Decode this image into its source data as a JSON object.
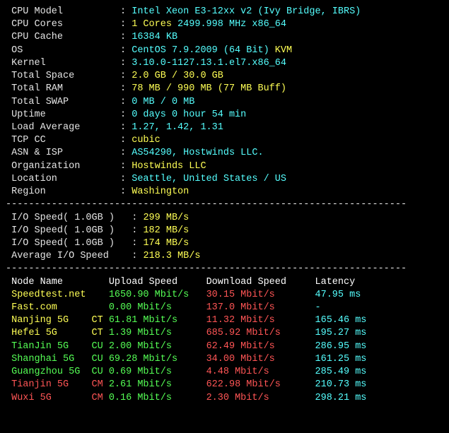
{
  "sysinfo": [
    {
      "label": "CPU Model",
      "segments": [
        {
          "c": "cyan",
          "t": "Intel Xeon E3-12xx v2 (Ivy Bridge, IBRS)"
        }
      ]
    },
    {
      "label": "CPU Cores",
      "segments": [
        {
          "c": "yellow",
          "t": "1 Cores"
        },
        {
          "c": "cyan",
          "t": " 2499.998 MHz x86_64"
        }
      ]
    },
    {
      "label": "CPU Cache",
      "segments": [
        {
          "c": "cyan",
          "t": "16384 KB"
        }
      ]
    },
    {
      "label": "OS",
      "segments": [
        {
          "c": "cyan",
          "t": "CentOS 7.9.2009 (64 Bit) "
        },
        {
          "c": "yellow",
          "t": "KVM"
        }
      ]
    },
    {
      "label": "Kernel",
      "segments": [
        {
          "c": "cyan",
          "t": "3.10.0-1127.13.1.el7.x86_64"
        }
      ]
    },
    {
      "label": "Total Space",
      "segments": [
        {
          "c": "yellow",
          "t": "2.0 GB / 30.0 GB"
        }
      ]
    },
    {
      "label": "Total RAM",
      "segments": [
        {
          "c": "yellow",
          "t": "78 MB / 990 MB (77 MB Buff)"
        }
      ]
    },
    {
      "label": "Total SWAP",
      "segments": [
        {
          "c": "cyan",
          "t": "0 MB / 0 MB"
        }
      ]
    },
    {
      "label": "Uptime",
      "segments": [
        {
          "c": "cyan",
          "t": "0 days 0 hour 54 min"
        }
      ]
    },
    {
      "label": "Load Average",
      "segments": [
        {
          "c": "cyan",
          "t": "1.27, 1.42, 1.31"
        }
      ]
    },
    {
      "label": "TCP CC",
      "segments": [
        {
          "c": "yellow",
          "t": "cubic"
        }
      ]
    },
    {
      "label": "ASN & ISP",
      "segments": [
        {
          "c": "cyan",
          "t": "AS54290, Hostwinds LLC."
        }
      ]
    },
    {
      "label": "Organization",
      "segments": [
        {
          "c": "yellow",
          "t": "Hostwinds LLC"
        }
      ]
    },
    {
      "label": "Location",
      "segments": [
        {
          "c": "cyan",
          "t": "Seattle, United States / US"
        }
      ]
    },
    {
      "label": "Region",
      "segments": [
        {
          "c": "yellow",
          "t": "Washington"
        }
      ]
    }
  ],
  "io": [
    {
      "label": "I/O Speed( 1.0GB )",
      "value": "299 MB/s"
    },
    {
      "label": "I/O Speed( 1.0GB )",
      "value": "182 MB/s"
    },
    {
      "label": "I/O Speed( 1.0GB )",
      "value": "174 MB/s"
    },
    {
      "label": "Average I/O Speed",
      "value": "218.3 MB/s"
    }
  ],
  "speedtest": {
    "headers": {
      "node": "Node Name",
      "upload": "Upload Speed",
      "download": "Download Speed",
      "latency": "Latency"
    },
    "rows": [
      {
        "name": "Speedtest.net",
        "tag": "",
        "nameColor": "yellow",
        "upload": "1650.90 Mbit/s",
        "download": "30.15 Mbit/s",
        "latency": "47.95 ms"
      },
      {
        "name": "Fast.com",
        "tag": "",
        "nameColor": "yellow",
        "upload": "0.00 Mbit/s",
        "download": "137.0 Mbit/s",
        "latency": "-"
      },
      {
        "name": "Nanjing 5G",
        "tag": "CT",
        "nameColor": "yellow",
        "upload": "61.81 Mbit/s",
        "download": "11.32 Mbit/s",
        "latency": "165.46 ms"
      },
      {
        "name": "Hefei 5G",
        "tag": "CT",
        "nameColor": "yellow",
        "upload": "1.39 Mbit/s",
        "download": "685.92 Mbit/s",
        "latency": "195.27 ms"
      },
      {
        "name": "TianJin 5G",
        "tag": "CU",
        "nameColor": "green",
        "upload": "2.00 Mbit/s",
        "download": "62.49 Mbit/s",
        "latency": "286.95 ms"
      },
      {
        "name": "Shanghai 5G",
        "tag": "CU",
        "nameColor": "green",
        "upload": "69.28 Mbit/s",
        "download": "34.00 Mbit/s",
        "latency": "161.25 ms"
      },
      {
        "name": "Guangzhou 5G",
        "tag": "CU",
        "nameColor": "green",
        "upload": "0.69 Mbit/s",
        "download": "4.48 Mbit/s",
        "latency": "285.49 ms"
      },
      {
        "name": "Tianjin 5G",
        "tag": "CM",
        "nameColor": "red",
        "upload": "2.61 Mbit/s",
        "download": "622.98 Mbit/s",
        "latency": "210.73 ms"
      },
      {
        "name": "Wuxi 5G",
        "tag": "CM",
        "nameColor": "red",
        "upload": "0.16 Mbit/s",
        "download": "2.30 Mbit/s",
        "latency": "298.21 ms"
      }
    ]
  },
  "divider": "----------------------------------------------------------------------"
}
